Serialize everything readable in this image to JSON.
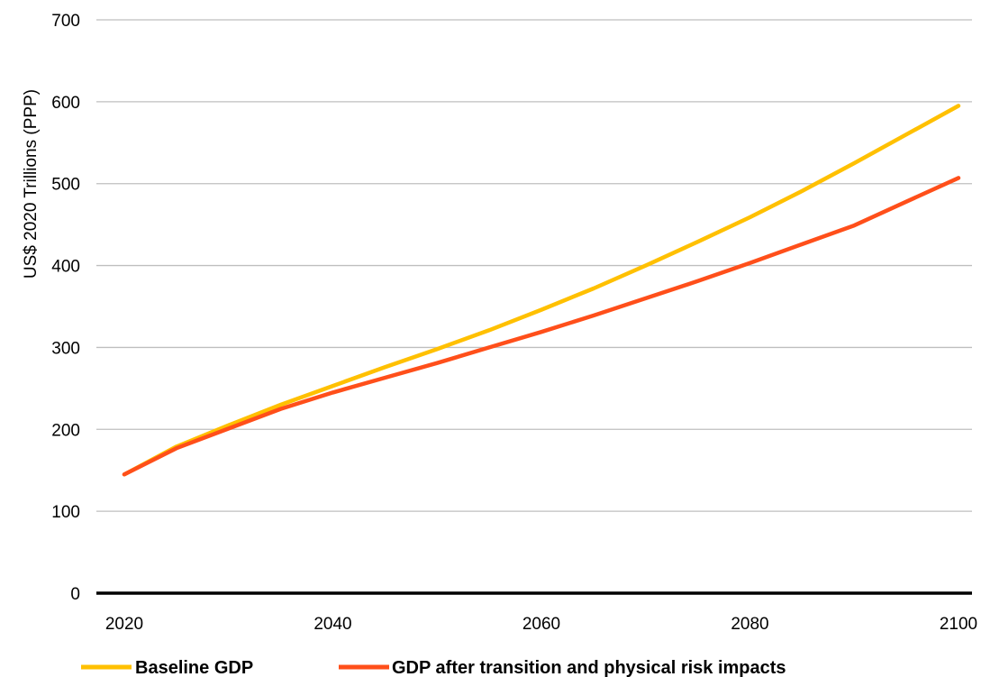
{
  "chart_data": {
    "type": "line",
    "title": "",
    "xlabel": "",
    "ylabel": "US$ 2020 Trillions (PPP)",
    "xlim": [
      2020,
      2100
    ],
    "ylim": [
      0,
      700
    ],
    "x_ticks": [
      "2020",
      "2040",
      "2060",
      "2080",
      "2100"
    ],
    "y_ticks": [
      "0",
      "100",
      "200",
      "300",
      "400",
      "500",
      "600",
      "700"
    ],
    "grid": "horizontal",
    "legend_position": "bottom",
    "series": [
      {
        "name": "Baseline GDP",
        "color": "#FFC000",
        "x": [
          2020,
          2025,
          2030,
          2035,
          2040,
          2045,
          2050,
          2055,
          2060,
          2065,
          2070,
          2075,
          2080,
          2085,
          2090,
          2095,
          2100
        ],
        "values": [
          145,
          179,
          205,
          230,
          253,
          276,
          298,
          321,
          346,
          372,
          400,
          429,
          459,
          491,
          525,
          560,
          595
        ]
      },
      {
        "name": "GDP after transition and physical risk impacts",
        "color": "#FF4F1A",
        "x": [
          2020,
          2025,
          2030,
          2035,
          2040,
          2045,
          2050,
          2055,
          2060,
          2065,
          2070,
          2075,
          2080,
          2085,
          2090,
          2095,
          2100
        ],
        "values": [
          145,
          177,
          201,
          225,
          245,
          263,
          281,
          300,
          319,
          339,
          360,
          381,
          403,
          426,
          449,
          478,
          507
        ]
      }
    ]
  }
}
